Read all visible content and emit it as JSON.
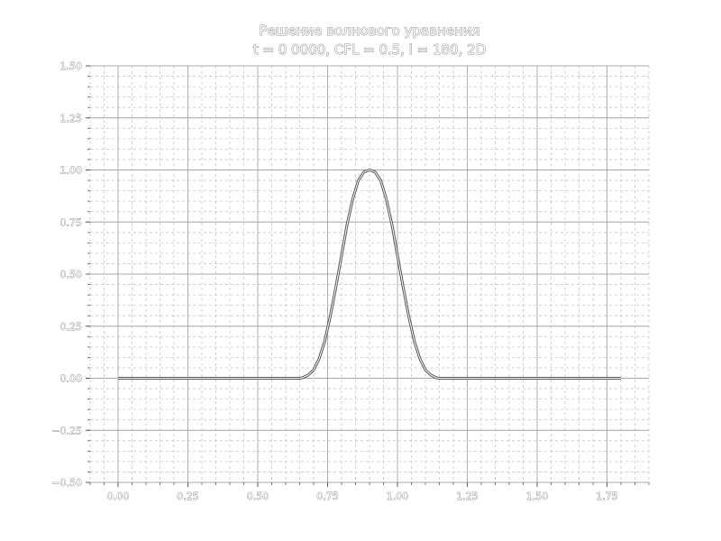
{
  "chart_data": {
    "type": "line",
    "title": "Решение волнового уравнения",
    "subtitle": "t = 0 0000, CFL = 0.5, l = 180, 2D",
    "xlabel": "",
    "ylabel": "",
    "xlim": [
      -0.1,
      1.9
    ],
    "ylim": [
      -0.5,
      1.5
    ],
    "grid": true,
    "x_ticks": [
      "0.00",
      "0.25",
      "0.50",
      "0.75",
      "1.00",
      "1.25",
      "1.50",
      "1.75"
    ],
    "y_ticks": [
      "−0.50",
      "−0.25",
      "0.00",
      "0.25",
      "0.50",
      "0.75",
      "1.00",
      "1.25",
      "1.50"
    ],
    "x_tick_values": [
      0,
      0.25,
      0.5,
      0.75,
      1.0,
      1.25,
      1.5,
      1.75
    ],
    "y_tick_values": [
      -0.5,
      -0.25,
      0,
      0.25,
      0.5,
      0.75,
      1.0,
      1.25,
      1.5
    ],
    "series": [
      {
        "x": [
          0.0,
          0.65,
          0.66,
          0.68,
          0.7,
          0.72,
          0.74,
          0.76,
          0.78,
          0.8,
          0.82,
          0.84,
          0.86,
          0.88,
          0.9,
          0.92,
          0.94,
          0.96,
          0.98,
          1.0,
          1.02,
          1.04,
          1.06,
          1.08,
          1.1,
          1.12,
          1.14,
          1.15,
          1.8
        ],
        "y": [
          0.0,
          0.0,
          0.002,
          0.015,
          0.04,
          0.095,
          0.18,
          0.3,
          0.44,
          0.59,
          0.74,
          0.86,
          0.95,
          0.99,
          1.0,
          0.99,
          0.95,
          0.86,
          0.74,
          0.59,
          0.44,
          0.3,
          0.18,
          0.095,
          0.04,
          0.015,
          0.002,
          0.0,
          0.0
        ]
      }
    ]
  }
}
